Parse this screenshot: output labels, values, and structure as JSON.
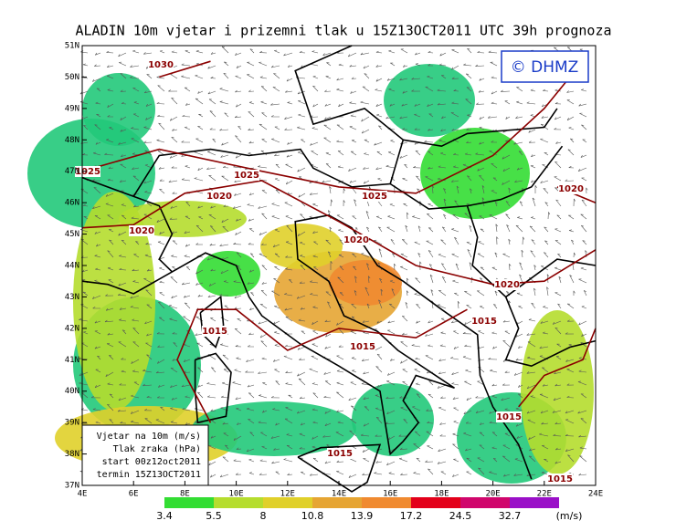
{
  "title": "ALADIN 10m vjetar i prizemni tlak u 15Z13OCT2011 UTC 39h prognoza",
  "logo": "© DHMZ",
  "lat_labels": [
    "51N",
    "50N",
    "49N",
    "48N",
    "47N",
    "46N",
    "45N",
    "44N",
    "43N",
    "42N",
    "41N",
    "40N",
    "39N",
    "38N",
    "37N"
  ],
  "lon_labels": [
    "4E",
    "6E",
    "8E",
    "10E",
    "12E",
    "14E",
    "16E",
    "18E",
    "20E",
    "22E",
    "24E"
  ],
  "isobar_labels": [
    "1030",
    "1025",
    "1025",
    "1020",
    "1025",
    "1020",
    "1020",
    "1020",
    "1020",
    "1015",
    "1015",
    "1015",
    "1015",
    "1015",
    "1015"
  ],
  "info_box": [
    "Vjetar na 10m (m/s)",
    "Tlak zraka (hPa)",
    "start 00z12oct2011",
    "termin 15Z13OCT2011"
  ],
  "colorbar": {
    "colors": [
      "#22c97a",
      "#33dd33",
      "#b5dd2e",
      "#e0d02a",
      "#e6a533",
      "#f08a30",
      "#e3001a",
      "#d0066c",
      "#9a10c8"
    ],
    "labels": [
      "3.4",
      "5.5",
      "8",
      "10.8",
      "13.9",
      "17.2",
      "24.5",
      "32.7"
    ],
    "unit": "(m/s)"
  }
}
